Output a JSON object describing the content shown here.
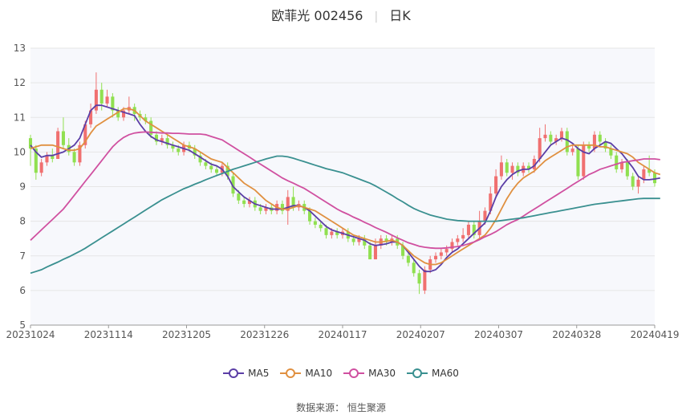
{
  "title": {
    "name": "欧菲光 002456",
    "period": "日K"
  },
  "source": {
    "label": "数据来源：",
    "name": "恒生聚源"
  },
  "colors": {
    "up": "#f07070",
    "down": "#90e050",
    "MA5": "#5b3ea6",
    "MA10": "#e09040",
    "MA30": "#d050a0",
    "MA60": "#3a9090",
    "grid": "#e6e6e6",
    "plot_bg": "#f7f8fc"
  },
  "chart_data": {
    "type": "candlestick",
    "x_tick_labels": [
      "20231024",
      "20231114",
      "20231205",
      "20231226",
      "20240117",
      "20240207",
      "20240307",
      "20240328",
      "20240419"
    ],
    "ylim": [
      5,
      13
    ],
    "y_ticks": [
      5,
      6,
      7,
      8,
      9,
      10,
      11,
      12,
      13
    ],
    "grid": true,
    "legend_position": "bottom-center",
    "candles": [
      [
        10.4,
        10.1,
        10.5,
        9.6
      ],
      [
        10.1,
        9.4,
        10.2,
        9.2
      ],
      [
        9.4,
        9.7,
        9.8,
        9.3
      ],
      [
        9.7,
        9.9,
        10.0,
        9.6
      ],
      [
        9.9,
        9.8,
        10.1,
        9.7
      ],
      [
        9.8,
        10.6,
        10.7,
        9.8
      ],
      [
        10.6,
        10.2,
        11.0,
        10.1
      ],
      [
        10.2,
        10.0,
        10.4,
        9.9
      ],
      [
        10.0,
        9.7,
        10.1,
        9.6
      ],
      [
        9.7,
        10.2,
        10.3,
        9.6
      ],
      [
        10.2,
        10.8,
        10.9,
        10.1
      ],
      [
        10.8,
        11.2,
        11.4,
        10.7
      ],
      [
        11.2,
        11.8,
        12.3,
        11.1
      ],
      [
        11.8,
        11.4,
        12.0,
        11.2
      ],
      [
        11.4,
        11.6,
        11.8,
        11.3
      ],
      [
        11.6,
        11.2,
        11.7,
        11.0
      ],
      [
        11.2,
        11.0,
        11.3,
        10.9
      ],
      [
        11.0,
        11.2,
        11.3,
        10.9
      ],
      [
        11.2,
        11.3,
        11.6,
        11.1
      ],
      [
        11.3,
        11.1,
        11.4,
        10.9
      ],
      [
        11.1,
        11.0,
        11.2,
        10.9
      ],
      [
        11.0,
        10.9,
        11.1,
        10.8
      ],
      [
        10.9,
        10.5,
        11.0,
        10.4
      ],
      [
        10.5,
        10.3,
        10.6,
        10.2
      ],
      [
        10.3,
        10.4,
        10.5,
        10.2
      ],
      [
        10.4,
        10.2,
        10.5,
        10.1
      ],
      [
        10.2,
        10.1,
        10.3,
        10.0
      ],
      [
        10.1,
        10.0,
        10.2,
        9.9
      ],
      [
        10.0,
        10.2,
        10.3,
        9.9
      ],
      [
        10.2,
        10.1,
        10.3,
        10.0
      ],
      [
        10.1,
        9.9,
        10.2,
        9.8
      ],
      [
        9.9,
        9.7,
        10.0,
        9.6
      ],
      [
        9.7,
        9.6,
        9.8,
        9.5
      ],
      [
        9.6,
        9.5,
        9.7,
        9.4
      ],
      [
        9.5,
        9.4,
        9.6,
        9.3
      ],
      [
        9.4,
        9.6,
        9.7,
        9.3
      ],
      [
        9.6,
        9.3,
        9.7,
        9.2
      ],
      [
        9.3,
        8.8,
        9.4,
        8.7
      ],
      [
        8.8,
        8.6,
        8.9,
        8.5
      ],
      [
        8.6,
        8.5,
        8.7,
        8.4
      ],
      [
        8.5,
        8.6,
        8.7,
        8.4
      ],
      [
        8.6,
        8.4,
        8.7,
        8.3
      ],
      [
        8.4,
        8.3,
        8.5,
        8.2
      ],
      [
        8.3,
        8.4,
        8.5,
        8.2
      ],
      [
        8.4,
        8.3,
        8.5,
        8.2
      ],
      [
        8.3,
        8.5,
        8.6,
        8.2
      ],
      [
        8.5,
        8.3,
        8.6,
        8.2
      ],
      [
        8.3,
        8.7,
        8.9,
        7.9
      ],
      [
        8.7,
        8.4,
        9.0,
        8.3
      ],
      [
        8.4,
        8.5,
        8.6,
        8.3
      ],
      [
        8.5,
        8.3,
        8.6,
        8.2
      ],
      [
        8.3,
        8.0,
        8.4,
        7.9
      ],
      [
        8.0,
        7.9,
        8.1,
        7.8
      ],
      [
        7.9,
        7.8,
        8.0,
        7.7
      ],
      [
        7.8,
        7.6,
        7.9,
        7.5
      ],
      [
        7.6,
        7.7,
        7.8,
        7.5
      ],
      [
        7.7,
        7.6,
        7.8,
        7.5
      ],
      [
        7.6,
        7.7,
        7.8,
        7.5
      ],
      [
        7.7,
        7.5,
        7.8,
        7.4
      ],
      [
        7.5,
        7.4,
        7.6,
        7.3
      ],
      [
        7.4,
        7.5,
        7.6,
        7.3
      ],
      [
        7.5,
        7.3,
        7.6,
        7.2
      ],
      [
        7.3,
        6.9,
        7.4,
        6.9
      ],
      [
        6.9,
        7.3,
        7.5,
        6.9
      ],
      [
        7.3,
        7.5,
        7.6,
        7.2
      ],
      [
        7.5,
        7.4,
        7.6,
        7.3
      ],
      [
        7.4,
        7.5,
        7.6,
        7.3
      ],
      [
        7.5,
        7.3,
        7.6,
        7.2
      ],
      [
        7.3,
        7.0,
        7.4,
        6.9
      ],
      [
        7.0,
        6.8,
        7.1,
        6.7
      ],
      [
        6.8,
        6.5,
        6.9,
        6.4
      ],
      [
        6.5,
        6.2,
        6.6,
        5.9
      ],
      [
        6.0,
        6.6,
        6.7,
        5.9
      ],
      [
        6.6,
        6.9,
        7.0,
        6.5
      ],
      [
        6.9,
        7.0,
        7.1,
        6.8
      ],
      [
        7.0,
        7.1,
        7.2,
        6.9
      ],
      [
        7.1,
        7.2,
        7.3,
        7.0
      ],
      [
        7.2,
        7.4,
        7.5,
        7.1
      ],
      [
        7.4,
        7.5,
        7.6,
        7.3
      ],
      [
        7.5,
        7.6,
        7.8,
        7.4
      ],
      [
        7.6,
        7.9,
        8.0,
        7.5
      ],
      [
        7.9,
        7.6,
        8.0,
        7.5
      ],
      [
        7.6,
        8.0,
        8.3,
        7.5
      ],
      [
        8.0,
        8.3,
        8.4,
        7.9
      ],
      [
        8.3,
        8.8,
        9.0,
        8.2
      ],
      [
        8.8,
        9.3,
        9.5,
        8.7
      ],
      [
        9.3,
        9.7,
        9.9,
        9.2
      ],
      [
        9.7,
        9.4,
        9.8,
        9.3
      ],
      [
        9.4,
        9.6,
        9.7,
        9.2
      ],
      [
        9.6,
        9.4,
        9.7,
        9.3
      ],
      [
        9.4,
        9.6,
        9.7,
        9.3
      ],
      [
        9.6,
        9.5,
        9.7,
        9.4
      ],
      [
        9.5,
        9.8,
        9.9,
        9.4
      ],
      [
        9.8,
        10.4,
        10.7,
        9.7
      ],
      [
        10.4,
        10.5,
        10.8,
        10.3
      ],
      [
        10.5,
        10.3,
        10.6,
        10.2
      ],
      [
        10.3,
        10.4,
        10.5,
        10.2
      ],
      [
        10.4,
        10.6,
        10.7,
        10.3
      ],
      [
        10.6,
        10.0,
        10.7,
        9.9
      ],
      [
        10.0,
        10.1,
        10.2,
        9.9
      ],
      [
        10.1,
        9.3,
        10.2,
        9.2
      ],
      [
        9.3,
        10.2,
        10.3,
        9.2
      ],
      [
        10.2,
        10.1,
        10.3,
        10.0
      ],
      [
        10.1,
        10.5,
        10.6,
        10.0
      ],
      [
        10.5,
        10.3,
        10.6,
        10.2
      ],
      [
        10.3,
        10.1,
        10.4,
        10.0
      ],
      [
        10.1,
        9.9,
        10.2,
        9.8
      ],
      [
        9.9,
        9.5,
        10.0,
        9.4
      ],
      [
        9.5,
        9.7,
        9.8,
        9.4
      ],
      [
        9.7,
        9.3,
        9.8,
        9.2
      ],
      [
        9.3,
        9.0,
        9.4,
        8.9
      ],
      [
        9.0,
        9.2,
        9.3,
        8.8
      ],
      [
        9.2,
        9.5,
        9.6,
        9.1
      ],
      [
        9.5,
        9.4,
        9.9,
        9.3
      ],
      [
        9.4,
        9.1,
        9.5,
        9.0
      ]
    ],
    "series": [
      {
        "name": "MA5",
        "values": [
          10.2,
          10.0,
          9.85,
          9.9,
          9.9,
          9.95,
          10.0,
          10.1,
          10.2,
          10.4,
          10.8,
          11.2,
          11.35,
          11.35,
          11.3,
          11.25,
          11.2,
          11.15,
          11.1,
          11.05,
          10.8,
          10.6,
          10.45,
          10.35,
          10.3,
          10.25,
          10.2,
          10.15,
          10.1,
          10.05,
          9.95,
          9.85,
          9.75,
          9.65,
          9.6,
          9.5,
          9.3,
          9.0,
          8.85,
          8.7,
          8.6,
          8.5,
          8.45,
          8.4,
          8.35,
          8.35,
          8.35,
          8.4,
          8.45,
          8.45,
          8.4,
          8.3,
          8.15,
          8.0,
          7.85,
          7.75,
          7.7,
          7.65,
          7.6,
          7.55,
          7.5,
          7.45,
          7.35,
          7.3,
          7.32,
          7.35,
          7.4,
          7.4,
          7.3,
          7.1,
          6.9,
          6.7,
          6.55,
          6.55,
          6.6,
          6.75,
          6.95,
          7.1,
          7.2,
          7.35,
          7.5,
          7.65,
          7.8,
          7.95,
          8.3,
          8.7,
          9.0,
          9.2,
          9.35,
          9.45,
          9.5,
          9.5,
          9.6,
          9.8,
          10.0,
          10.2,
          10.3,
          10.4,
          10.35,
          10.25,
          10.1,
          10.0,
          9.95,
          10.1,
          10.2,
          10.3,
          10.25,
          10.1,
          9.95,
          9.75,
          9.55,
          9.3,
          9.2,
          9.2,
          9.22,
          9.25
        ]
      },
      {
        "name": "MA10",
        "values": [
          10.1,
          10.15,
          10.2,
          10.2,
          10.2,
          10.15,
          10.1,
          10.05,
          10.05,
          10.1,
          10.3,
          10.55,
          10.75,
          10.85,
          10.95,
          11.05,
          11.15,
          11.25,
          11.25,
          11.2,
          11.05,
          10.9,
          10.8,
          10.7,
          10.6,
          10.5,
          10.4,
          10.3,
          10.2,
          10.15,
          10.1,
          10.0,
          9.9,
          9.8,
          9.75,
          9.7,
          9.55,
          9.4,
          9.25,
          9.1,
          9.0,
          8.9,
          8.75,
          8.6,
          8.5,
          8.4,
          8.35,
          8.35,
          8.4,
          8.45,
          8.4,
          8.35,
          8.3,
          8.2,
          8.1,
          8.0,
          7.9,
          7.8,
          7.7,
          7.6,
          7.55,
          7.5,
          7.45,
          7.4,
          7.4,
          7.42,
          7.45,
          7.4,
          7.3,
          7.15,
          7.0,
          6.9,
          6.8,
          6.75,
          6.75,
          6.8,
          6.9,
          7.0,
          7.1,
          7.2,
          7.3,
          7.4,
          7.5,
          7.6,
          7.8,
          8.05,
          8.35,
          8.65,
          8.9,
          9.1,
          9.25,
          9.35,
          9.45,
          9.6,
          9.75,
          9.85,
          9.95,
          10.05,
          10.15,
          10.2,
          10.2,
          10.2,
          10.2,
          10.2,
          10.15,
          10.15,
          10.1,
          10.05,
          10.0,
          9.95,
          9.85,
          9.7,
          9.6,
          9.5,
          9.4,
          9.35
        ]
      },
      {
        "name": "MA30",
        "values": [
          7.45,
          7.6,
          7.75,
          7.9,
          8.05,
          8.2,
          8.35,
          8.55,
          8.75,
          8.95,
          9.15,
          9.35,
          9.55,
          9.75,
          9.95,
          10.15,
          10.3,
          10.42,
          10.5,
          10.55,
          10.57,
          10.58,
          10.57,
          10.56,
          10.55,
          10.55,
          10.54,
          10.54,
          10.53,
          10.52,
          10.52,
          10.52,
          10.5,
          10.45,
          10.4,
          10.35,
          10.25,
          10.15,
          10.05,
          9.95,
          9.85,
          9.75,
          9.65,
          9.55,
          9.45,
          9.35,
          9.25,
          9.17,
          9.1,
          9.02,
          8.95,
          8.85,
          8.75,
          8.65,
          8.55,
          8.45,
          8.35,
          8.27,
          8.2,
          8.12,
          8.05,
          7.97,
          7.9,
          7.82,
          7.75,
          7.68,
          7.6,
          7.52,
          7.45,
          7.38,
          7.33,
          7.28,
          7.25,
          7.23,
          7.22,
          7.22,
          7.23,
          7.25,
          7.27,
          7.3,
          7.35,
          7.4,
          7.47,
          7.55,
          7.62,
          7.7,
          7.8,
          7.9,
          7.98,
          8.05,
          8.15,
          8.25,
          8.35,
          8.45,
          8.55,
          8.65,
          8.75,
          8.85,
          8.95,
          9.05,
          9.15,
          9.25,
          9.35,
          9.42,
          9.5,
          9.55,
          9.6,
          9.65,
          9.7,
          9.72,
          9.75,
          9.77,
          9.8,
          9.8,
          9.8,
          9.78
        ]
      },
      {
        "name": "MA60",
        "values": [
          6.5,
          6.55,
          6.6,
          6.68,
          6.75,
          6.82,
          6.9,
          6.97,
          7.05,
          7.13,
          7.22,
          7.32,
          7.42,
          7.52,
          7.62,
          7.72,
          7.82,
          7.92,
          8.02,
          8.12,
          8.22,
          8.32,
          8.42,
          8.52,
          8.62,
          8.7,
          8.78,
          8.86,
          8.94,
          9.0,
          9.07,
          9.13,
          9.2,
          9.26,
          9.32,
          9.38,
          9.44,
          9.5,
          9.55,
          9.6,
          9.65,
          9.7,
          9.75,
          9.8,
          9.84,
          9.88,
          9.88,
          9.86,
          9.82,
          9.77,
          9.72,
          9.67,
          9.62,
          9.57,
          9.52,
          9.48,
          9.44,
          9.4,
          9.34,
          9.28,
          9.22,
          9.16,
          9.1,
          9.02,
          8.93,
          8.84,
          8.75,
          8.65,
          8.56,
          8.46,
          8.37,
          8.3,
          8.24,
          8.18,
          8.14,
          8.1,
          8.06,
          8.04,
          8.02,
          8.01,
          8.0,
          8.0,
          8.0,
          8.0,
          8.0,
          8.0,
          8.02,
          8.04,
          8.06,
          8.08,
          8.1,
          8.13,
          8.16,
          8.19,
          8.22,
          8.25,
          8.28,
          8.31,
          8.34,
          8.37,
          8.4,
          8.43,
          8.46,
          8.49,
          8.51,
          8.53,
          8.55,
          8.57,
          8.59,
          8.61,
          8.63,
          8.65,
          8.66,
          8.66,
          8.66,
          8.66
        ]
      }
    ]
  }
}
